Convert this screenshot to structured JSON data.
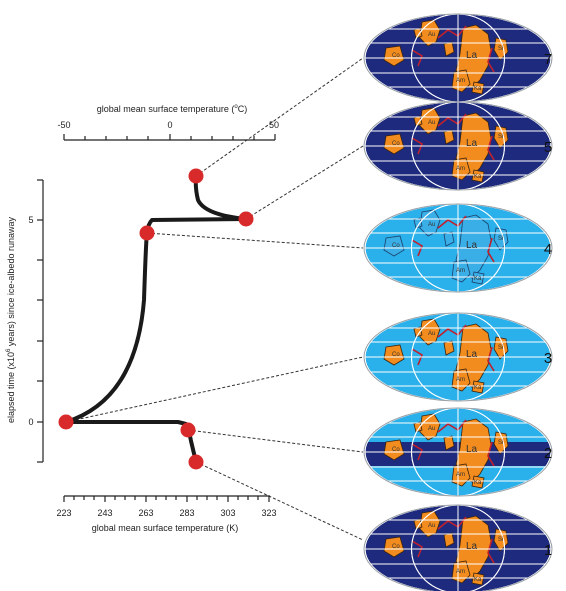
{
  "diagram": {
    "top_axis": {
      "title_prefix": "global mean surface temperature (",
      "title_sup": "o",
      "title_suffix": "C)",
      "ticks": [
        "-50",
        "0",
        "50"
      ]
    },
    "bottom_axis": {
      "title": "global mean surface temperature (K)",
      "ticks": [
        "223",
        "243",
        "263",
        "283",
        "303",
        "323"
      ]
    },
    "left_axis": {
      "title_prefix": "elapsed time (x10",
      "title_sup": "6",
      "title_suffix": " years) since ice-albedo runaway",
      "ticks": [
        "5",
        "0"
      ]
    },
    "stages": [
      {
        "number": "7",
        "ice": "none"
      },
      {
        "number": "5",
        "ice": "none"
      },
      {
        "number": "4",
        "ice": "full"
      },
      {
        "number": "3",
        "ice": "mostly"
      },
      {
        "number": "2",
        "ice": "partial"
      },
      {
        "number": "1",
        "ice": "none"
      }
    ],
    "continent_labels": {
      "la": "La",
      "au": "Au",
      "si": "Si",
      "am": "Am",
      "co": "Co",
      "ka": "Ka"
    },
    "colors": {
      "ocean_warm": "#1e2a7e",
      "ocean_ice": "#2ab0ea",
      "land": "#f28c1e",
      "land_ice": "#3aaee6",
      "rift": "#c0202e",
      "marker": "#d82a2a",
      "curve": "#1a1a1a"
    }
  }
}
